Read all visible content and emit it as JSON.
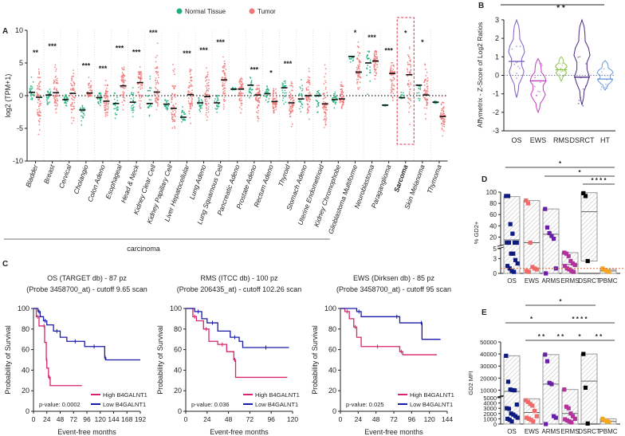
{
  "chart_data": [
    {
      "panel": "A",
      "type": "scatter",
      "ylabel": "log2 (TPM+1)",
      "ylim": [
        -10,
        10
      ],
      "yticks": [
        10,
        5,
        0,
        -5,
        -10
      ],
      "legend": [
        {
          "name": "Normal Tissue",
          "color": "#1db07a"
        },
        {
          "name": "Tumor",
          "color": "#f07575"
        }
      ],
      "legend_position": "top",
      "group_label": "carcinoma",
      "highlight": "Sarcoma",
      "categories": [
        "Bladder",
        "Breast",
        "Cervical",
        "Cholangio",
        "Colon Adeno",
        "Esophageal",
        "Head & Neck",
        "Kidney Clear Cell",
        "Kidney Papillary Cell",
        "Liver Hepatocellular",
        "Lung Adeno",
        "Lung Squamous Cell",
        "Pancreatic Adeno",
        "Prostate Adeno",
        "Rectum Adeno",
        "Thyroid",
        "Stomach Adeno",
        "Uterine Endometrioid",
        "Kidney Chromophobe",
        "Glioblastoma Multiforme",
        "Neuroblastoma",
        "Paraganglioma",
        "Sarcoma",
        "Skin Melanoma",
        "Thymoma"
      ],
      "normal_median": [
        0.5,
        0.1,
        -0.6,
        -2.2,
        -0.3,
        -1.2,
        -1.0,
        -1.2,
        -1.3,
        -3.3,
        -1.1,
        -1.1,
        1.0,
        1.6,
        0.3,
        1.2,
        -0.5,
        0.0,
        -0.6,
        6.0,
        5.0,
        -1.45,
        -0.3,
        1.6,
        -1.0
      ],
      "tumor_median": [
        -0.25,
        0.45,
        0.35,
        0.4,
        -0.85,
        1.5,
        2.0,
        0.55,
        -1.95,
        0.15,
        -0.15,
        2.4,
        1.0,
        0.1,
        -0.9,
        -1.1,
        0.0,
        -1.25,
        -0.5,
        3.6,
        5.3,
        3.4,
        3.2,
        0.1,
        -3.2
      ],
      "normal_range": [
        [
          -1.6,
          3.7
        ],
        [
          -2.4,
          1.9
        ],
        [
          -1.8,
          1.5
        ],
        [
          -5,
          -1.3
        ],
        [
          -2,
          1.6
        ],
        [
          -4,
          2.8
        ],
        [
          -5.6,
          2.5
        ],
        [
          -3.5,
          4.4
        ],
        [
          -2.5,
          0
        ],
        [
          -5,
          -1.5
        ],
        [
          -3.2,
          0.5
        ],
        [
          -3.5,
          1
        ],
        [
          0.8,
          1.4
        ],
        [
          -1.8,
          3
        ],
        [
          -1.9,
          1.9
        ],
        [
          -4,
          3.2
        ],
        [
          -3.6,
          4.3
        ],
        [
          -3.2,
          1.4
        ],
        [
          -2.3,
          0.7
        ],
        [
          4.2,
          6
        ],
        [
          -2.4,
          7.9
        ],
        [
          -1.7,
          -1.4
        ],
        [
          -0.5,
          1
        ],
        [
          -2,
          1.6
        ],
        [
          -1.3,
          -0.8
        ]
      ],
      "tumor_range": [
        [
          -6.5,
          5.6
        ],
        [
          -3.1,
          6.6
        ],
        [
          -5.6,
          5.1
        ],
        [
          -0.5,
          3.6
        ],
        [
          -4.3,
          3.2
        ],
        [
          -3.6,
          6.3
        ],
        [
          -4,
          5.7
        ],
        [
          -3,
          9
        ],
        [
          -6.5,
          7
        ],
        [
          -5,
          5.5
        ],
        [
          -4.5,
          6
        ],
        [
          -3.2,
          7.2
        ],
        [
          -3.9,
          3.6
        ],
        [
          -4.6,
          2.7
        ],
        [
          -3.5,
          2.5
        ],
        [
          -5.6,
          3.9
        ],
        [
          -4.6,
          5
        ],
        [
          -6.5,
          6.6
        ],
        [
          -2.7,
          2.8
        ],
        [
          0,
          9.9
        ],
        [
          2.2,
          7.5
        ],
        [
          -2.8,
          5.9
        ],
        [
          -7,
          8.6
        ],
        [
          -5.6,
          7.2
        ],
        [
          -6.5,
          0.6
        ]
      ],
      "significance": [
        "**",
        "***",
        "",
        "***",
        "***",
        "***",
        "***",
        "***",
        "",
        "***",
        "***",
        "***",
        "",
        "***",
        "*",
        "***",
        "",
        "",
        "",
        "*",
        "***",
        "***",
        "*",
        "*",
        ""
      ]
    },
    {
      "panel": "B",
      "type": "violin",
      "ylabel": "Affymetrix - Z-Score of Log2 Ratios",
      "ylim": [
        -3,
        3
      ],
      "yticks": [
        3,
        2,
        1,
        0,
        -1,
        -2,
        -3
      ],
      "categories": [
        "OS",
        "EWS",
        "RMS",
        "DSRCT",
        "HT"
      ],
      "colors": [
        "#7b5fc0",
        "#c03fc0",
        "#8bc34a",
        "#4a2a80",
        "#6a9bd8"
      ],
      "median": [
        0.75,
        -0.3,
        0.3,
        -0.1,
        -0.2
      ],
      "range": [
        [
          -1.2,
          3
        ],
        [
          -2,
          0.9
        ],
        [
          -0.3,
          1
        ],
        [
          -1.6,
          3
        ],
        [
          -0.8,
          0.8
        ]
      ],
      "comparisons": [
        {
          "from": "OS",
          "to": "HT",
          "label": "* *"
        }
      ]
    },
    {
      "panel": "C",
      "type": "line",
      "plots": [
        {
          "title1": "OS (TARGET db) - 87 pz",
          "title2": "(Probe 3458700_at) - cutoff 9.65 scan",
          "xlim": [
            0,
            192
          ],
          "xticks": [
            0,
            24,
            48,
            72,
            96,
            120,
            144,
            168,
            192
          ],
          "pvalue": "p-value: 0.0002",
          "high": [
            [
              0,
              100
            ],
            [
              5,
              92
            ],
            [
              10,
              83
            ],
            [
              18,
              83
            ],
            [
              20,
              67
            ],
            [
              23,
              50
            ],
            [
              24,
              42
            ],
            [
              27,
              33
            ],
            [
              30,
              25
            ],
            [
              87,
              25
            ]
          ],
          "low": [
            [
              0,
              100
            ],
            [
              8,
              97
            ],
            [
              12,
              92
            ],
            [
              18,
              88
            ],
            [
              24,
              84
            ],
            [
              36,
              78
            ],
            [
              48,
              72
            ],
            [
              60,
              68
            ],
            [
              90,
              68
            ],
            [
              92,
              63
            ],
            [
              126,
              63
            ],
            [
              128,
              52
            ],
            [
              130,
              50
            ],
            [
              192,
              50
            ]
          ]
        },
        {
          "title1": "RMS (ITCC db) - 100 pz",
          "title2": "(Probe 206435_at) - cutoff 102.26 scan",
          "xlim": [
            0,
            120
          ],
          "xticks": [
            0,
            24,
            48,
            72,
            96,
            120
          ],
          "pvalue": "p-value: 0.036",
          "high": [
            [
              0,
              100
            ],
            [
              8,
              92
            ],
            [
              12,
              88
            ],
            [
              20,
              80
            ],
            [
              26,
              68
            ],
            [
              36,
              65
            ],
            [
              46,
              58
            ],
            [
              54,
              50
            ],
            [
              56,
              33
            ],
            [
              114,
              33
            ]
          ],
          "low": [
            [
              0,
              100
            ],
            [
              10,
              97
            ],
            [
              18,
              90
            ],
            [
              24,
              86
            ],
            [
              36,
              78
            ],
            [
              50,
              72
            ],
            [
              60,
              68
            ],
            [
              64,
              62
            ],
            [
              116,
              62
            ]
          ]
        },
        {
          "title1": "EWS (Dirksen db) - 85 pz",
          "title2": "(Probe 3458700_at) - cutoff 95 scan",
          "xlim": [
            0,
            144
          ],
          "xticks": [
            0,
            24,
            48,
            72,
            96,
            120,
            144
          ],
          "pvalue": "p-value: 0.025",
          "high": [
            [
              0,
              100
            ],
            [
              6,
              97
            ],
            [
              12,
              90
            ],
            [
              18,
              82
            ],
            [
              22,
              72
            ],
            [
              28,
              63
            ],
            [
              72,
              63
            ],
            [
              80,
              58
            ],
            [
              84,
              55
            ],
            [
              130,
              55
            ]
          ],
          "low": [
            [
              0,
              100
            ],
            [
              22,
              97
            ],
            [
              28,
              92
            ],
            [
              72,
              92
            ],
            [
              80,
              86
            ],
            [
              108,
              86
            ],
            [
              110,
              70
            ],
            [
              135,
              70
            ]
          ]
        }
      ],
      "xlabel": "Event-free months",
      "ylabel": "Probability of Survival",
      "ylim": [
        0,
        100
      ],
      "yticks": [
        0,
        20,
        40,
        60,
        80,
        100
      ],
      "legend": [
        {
          "name": "High B4GALNT1",
          "color": "#d6246e"
        },
        {
          "name": "Low B4GALNT1",
          "color": "#1a1aa8"
        }
      ]
    },
    {
      "panel": "D",
      "type": "bar",
      "ylabel": "% GD2+",
      "yticks_low": [
        0,
        3,
        5
      ],
      "yticks_high": [
        20,
        40,
        60,
        80,
        100
      ],
      "categories": [
        "OS",
        "EWS",
        "ARMS",
        "ERMS",
        "DSRCT",
        "PBMC"
      ],
      "colors": [
        "#0d1a80",
        "#f06a6a",
        "#6a1fa8",
        "#b0329a",
        "#000000",
        "#f5a623"
      ],
      "bar_top": [
        92,
        85,
        70,
        4.2,
        99,
        0.8
      ],
      "bar_line": [
        15,
        10,
        25,
        1.8,
        65,
        0.5
      ],
      "bar_bottom": [
        0,
        0,
        0,
        0,
        2.5,
        0
      ],
      "points": [
        [
          93,
          93,
          43,
          26,
          10,
          10,
          10,
          10,
          4,
          4,
          2.7,
          2,
          1.5,
          1,
          0.5,
          0.3
        ],
        [
          85,
          80,
          10,
          1.3,
          1,
          0.8,
          0.5,
          0.3
        ],
        [
          70,
          37,
          27,
          22,
          17,
          1,
          0
        ],
        [
          4.2,
          4,
          3.5,
          2.5,
          2,
          1.7,
          1.5,
          1,
          0.8,
          0.5,
          0.3
        ],
        [
          98,
          93,
          2.5
        ],
        [
          1,
          0.7,
          0.5,
          0.3
        ]
      ],
      "reference_line": 1,
      "comparisons": [
        {
          "from": "OS",
          "to": "PBMC",
          "label": "*"
        },
        {
          "from": "ARMS",
          "to": "PBMC",
          "label": "*"
        },
        {
          "from": "DSRCT",
          "to": "PBMC",
          "label": "* * * *"
        }
      ]
    },
    {
      "panel": "E",
      "type": "bar",
      "ylabel": "GD2 MFI",
      "yticks_low": [
        0,
        1000,
        2000,
        3000,
        4000,
        5000
      ],
      "yticks_high": [
        10000,
        20000,
        30000,
        40000,
        50000
      ],
      "categories": [
        "OS",
        "EWS",
        "ARMS",
        "ERMS",
        "DSRCT",
        "PBMC"
      ],
      "colors": [
        "#0d1a80",
        "#f06a6a",
        "#6a1fa8",
        "#b0329a",
        "#000000",
        "#f5a623"
      ],
      "bar_top": [
        38500,
        4800,
        39500,
        10500,
        40000,
        1000
      ],
      "bar_line": [
        9000,
        2200,
        15000,
        2000,
        17500,
        500
      ],
      "bar_bottom": [
        0,
        0,
        0,
        0,
        100,
        0
      ],
      "points": [
        [
          38500,
          17000,
          10500,
          10000,
          9800,
          3700,
          3000,
          2900,
          2000,
          1800,
          1500,
          1200,
          1000,
          800,
          500
        ],
        [
          4500,
          4200,
          3800,
          3500,
          2500,
          1500,
          1200,
          1000,
          800,
          500
        ],
        [
          39500,
          34000,
          16000,
          15000,
          1500,
          1200,
          0
        ],
        [
          10500,
          3300,
          3000,
          2000,
          1500,
          1000,
          900,
          700,
          500,
          300
        ],
        [
          40000,
          12000,
          100
        ],
        [
          1000,
          700,
          500,
          400
        ]
      ],
      "comparisons": [
        {
          "from": "EWS",
          "to": "DSRCT",
          "label": "*",
          "level": 0
        },
        {
          "from": "OS",
          "to": "ARMS",
          "label": "*",
          "level": 1
        },
        {
          "from": "ARMS",
          "to": "PBMC",
          "label": "* * * *",
          "level": 1
        },
        {
          "from": "EWS",
          "to": "ARMS",
          "label": "* *",
          "level": 2
        },
        {
          "from": "ARMS",
          "to": "ERMS",
          "label": "* *",
          "level": 2
        },
        {
          "from": "ERMS",
          "to": "DSRCT",
          "label": "*",
          "level": 2
        },
        {
          "from": "DSRCT",
          "to": "PBMC",
          "label": "* *",
          "level": 2
        }
      ]
    }
  ],
  "panel_labels": {
    "a": "A",
    "b": "B",
    "c": "C",
    "d": "D",
    "e": "E"
  }
}
